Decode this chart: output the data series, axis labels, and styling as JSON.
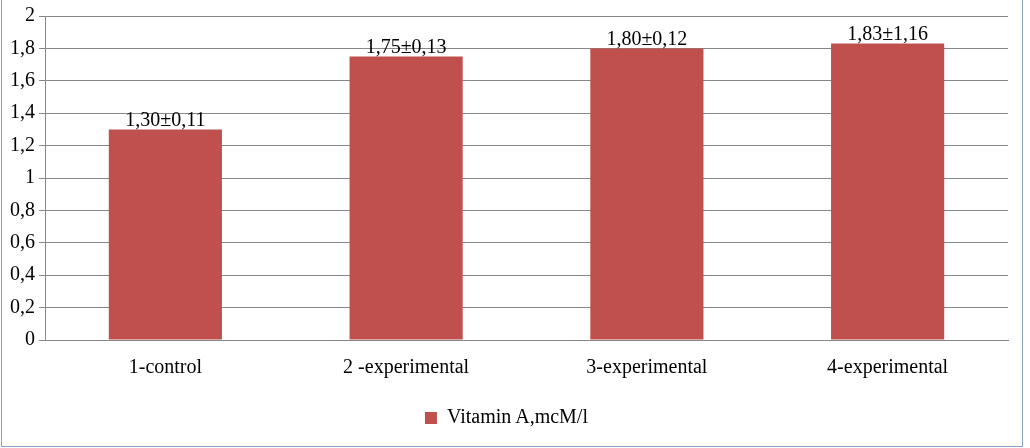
{
  "chart_data": {
    "type": "bar",
    "categories": [
      "1-control",
      "2 -experimental",
      "3-experimental",
      "4-experimental"
    ],
    "series": [
      {
        "name": "Vitamin A,mcM/l",
        "color": "#c0504d",
        "values": [
          1.3,
          1.75,
          1.8,
          1.83
        ],
        "value_labels": [
          "1,30±0,11",
          "1,75±0,13",
          "1,80±0,12",
          "1,83±1,16"
        ]
      }
    ],
    "ylim": [
      0,
      2
    ],
    "yticks": [
      0,
      {
        "value": 0.2,
        "label": "0,2"
      },
      {
        "value": 0.4,
        "label": "0,4"
      },
      {
        "value": 0.6,
        "label": "0,6"
      },
      {
        "value": 0.8,
        "label": "0,8"
      },
      1,
      {
        "value": 1.2,
        "label": "1,2"
      },
      {
        "value": 1.4,
        "label": "1,4"
      },
      {
        "value": 1.6,
        "label": "1,6"
      },
      {
        "value": 1.8,
        "label": "1,8"
      },
      2
    ],
    "grid": "y",
    "legend": "bottom"
  }
}
